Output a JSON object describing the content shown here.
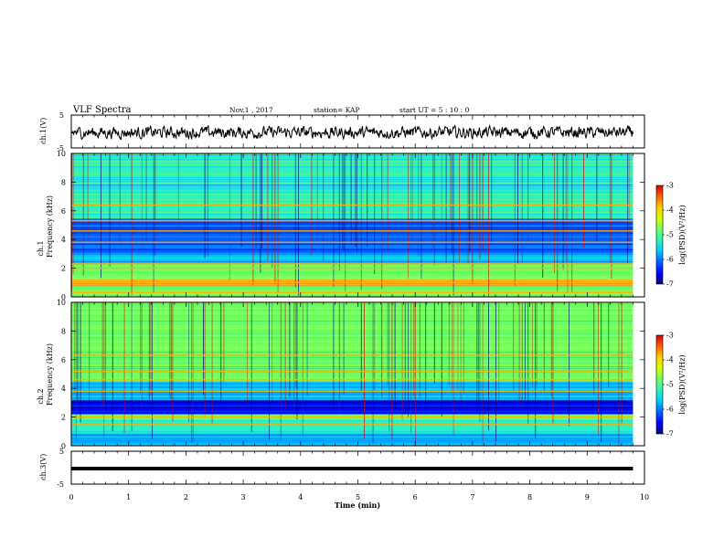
{
  "header": {
    "title": "VLF Spectra",
    "date": "Nov.1  , 2017",
    "station": "station= KAP",
    "start": "start  UT  =   5  : 10 : 0"
  },
  "colors": {
    "spectrogram_scale": [
      "#00007a",
      "#0000ff",
      "#0060ff",
      "#00c8ff",
      "#30f0c0",
      "#70ff60",
      "#d8ff00",
      "#ffd000",
      "#ff6000",
      "#d00000"
    ],
    "trace": "#000000"
  },
  "chart_data": [
    {
      "type": "line",
      "name_label": "ch.1(V)",
      "ylabel": "ch.1(V)",
      "ylim": [
        -5,
        5
      ],
      "yticks": [
        "5",
        "-5"
      ],
      "x_range_min": [
        0,
        9.8
      ],
      "y_center": -0.3,
      "y_fluctuation": 1.6
    },
    {
      "type": "heatmap",
      "ylabel": "ch.1\nFrequency (kHz)",
      "ylabel_lines": [
        "ch.1",
        "Frequency (kHz)"
      ],
      "ylim": [
        0,
        10
      ],
      "yticks": [
        "0",
        "2",
        "4",
        "6",
        "8",
        "10"
      ],
      "x_range_min": [
        0,
        9.8
      ],
      "colorbar": {
        "label": "log(PSD)(V²/Hz)",
        "ticks": [
          "-3",
          "-4",
          "-5",
          "-6",
          "-7"
        ],
        "range": [
          -7,
          -3
        ]
      },
      "bands_khz": [
        {
          "from": 0,
          "to": 0.8,
          "level": 0.55
        },
        {
          "from": 0.8,
          "to": 1.2,
          "level": 0.8
        },
        {
          "from": 1.2,
          "to": 2.3,
          "level": 0.5
        },
        {
          "from": 2.3,
          "to": 3.0,
          "level": 0.35
        },
        {
          "from": 3.0,
          "to": 5.5,
          "level": 0.18
        },
        {
          "from": 5.5,
          "to": 10,
          "level": 0.45
        }
      ],
      "lines_khz": [
        0.3,
        1.0,
        2.0,
        2.3,
        3.8,
        4.6,
        5.3,
        6.4
      ]
    },
    {
      "type": "heatmap",
      "ylabel": "ch.2\nFrequency (kHz)",
      "ylabel_lines": [
        "ch.2",
        "Frequency (kHz)"
      ],
      "ylim": [
        0,
        10
      ],
      "yticks": [
        "0",
        "2",
        "4",
        "6",
        "8",
        "10"
      ],
      "x_range_min": [
        0,
        9.8
      ],
      "colorbar": {
        "label": "log(PSD)(V²/Hz)",
        "ticks": [
          "-3",
          "-4",
          "-5",
          "-6",
          "-7"
        ],
        "range": [
          -7,
          -3
        ]
      },
      "bands_khz": [
        {
          "from": 0,
          "to": 0.8,
          "level": 0.3
        },
        {
          "from": 0.8,
          "to": 1.8,
          "level": 0.4
        },
        {
          "from": 1.8,
          "to": 2.2,
          "level": 0.55
        },
        {
          "from": 2.2,
          "to": 3.2,
          "level": 0.08
        },
        {
          "from": 3.2,
          "to": 4.5,
          "level": 0.35
        },
        {
          "from": 4.5,
          "to": 10,
          "level": 0.55
        }
      ],
      "lines_khz": [
        1.5,
        2.0,
        3.8,
        4.6,
        5.2,
        6.3
      ]
    },
    {
      "type": "line",
      "ylabel": "ch.3(V)",
      "ylim": [
        -5,
        5
      ],
      "yticks": [
        "5",
        "-5"
      ],
      "x_range_min": [
        0,
        9.8
      ],
      "y_constant": 0
    }
  ],
  "xaxis": {
    "label": "Time  (min)",
    "ticks": [
      "0",
      "1",
      "2",
      "3",
      "4",
      "5",
      "6",
      "7",
      "8",
      "9",
      "10"
    ],
    "range": [
      0,
      10
    ]
  }
}
